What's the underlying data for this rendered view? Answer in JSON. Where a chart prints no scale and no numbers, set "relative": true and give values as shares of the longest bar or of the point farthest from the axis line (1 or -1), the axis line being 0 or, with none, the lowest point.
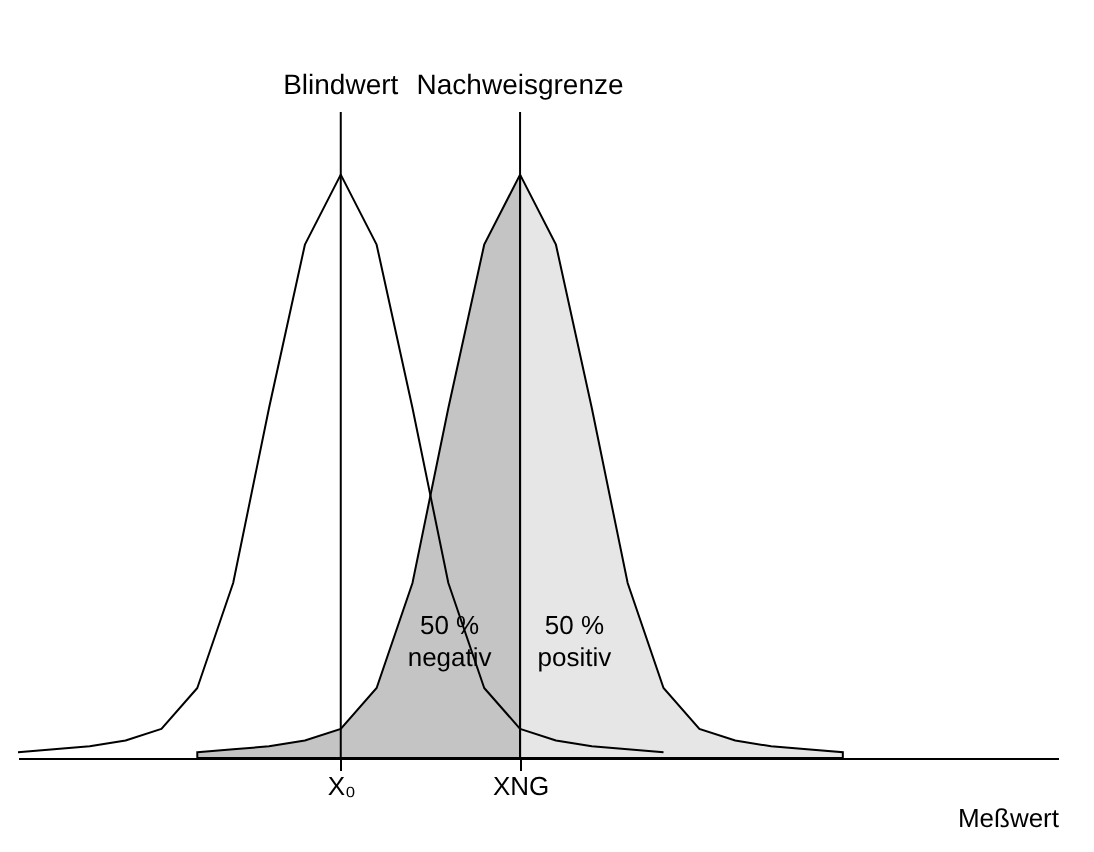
{
  "chart_data": {
    "type": "area",
    "relative": true,
    "xlabel": "Meßwert",
    "categories": [
      null,
      null,
      null,
      null,
      null,
      null,
      null,
      null,
      null,
      "X₀",
      null,
      null,
      null,
      null,
      "XNG",
      null,
      null,
      null,
      null,
      null,
      null,
      null,
      null,
      null,
      null,
      null,
      null,
      null,
      null,
      null
    ],
    "series": [
      {
        "color": "#c4c4c4",
        "values": [
          null,
          null,
          null,
          null,
          null,
          0.01,
          0.015,
          0.02,
          0.03,
          0.05,
          0.12,
          0.3,
          0.6,
          0.88,
          1,
          null,
          null,
          null,
          null,
          null,
          null,
          null,
          null,
          null,
          null,
          null,
          null,
          null,
          null,
          null
        ]
      },
      {
        "color": "#e6e6e6",
        "values": [
          null,
          null,
          null,
          null,
          null,
          null,
          null,
          null,
          null,
          null,
          null,
          null,
          null,
          null,
          1,
          0.88,
          0.6,
          0.3,
          0.12,
          0.05,
          0.03,
          0.02,
          0.015,
          0.01,
          null,
          null,
          null,
          null,
          null,
          null
        ]
      },
      {
        "type": "line",
        "color": "#000000",
        "values": [
          0.01,
          0.015,
          0.02,
          0.03,
          0.05,
          0.12,
          0.3,
          0.6,
          0.88,
          1,
          0.88,
          0.6,
          0.3,
          0.12,
          0.05,
          0.03,
          0.02,
          0.015,
          0.01,
          null,
          null,
          null,
          null,
          null,
          null,
          null,
          null,
          null,
          null,
          null
        ]
      }
    ],
    "ref_lines": [
      {
        "axis": "x",
        "value": "X₀",
        "label": "Blindwert"
      },
      {
        "axis": "x",
        "value": "XNG",
        "label": "Nachweisgrenze"
      }
    ],
    "annotations": [
      "50 %\nnegativ",
      "50 %\npositiv"
    ],
    "grid": false
  }
}
